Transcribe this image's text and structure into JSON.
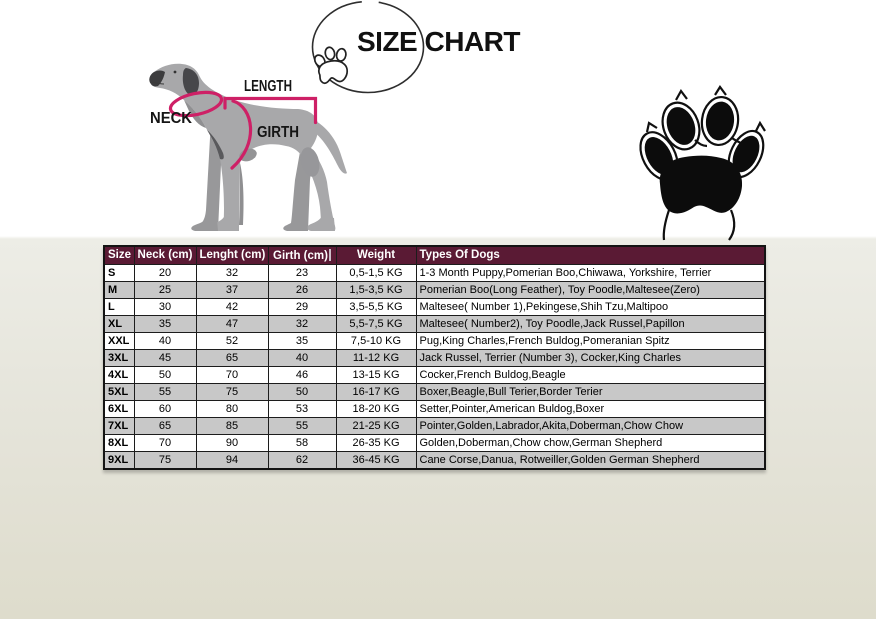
{
  "page": {
    "title": "SIZE CHART"
  },
  "icons": {
    "title_badge": "circle-outline-with-paw-icon",
    "corner_graphic": "dog-paw-print-icon"
  },
  "colors": {
    "accent_pink": "#CE2066",
    "table_header_bg": "#5A1A34",
    "table_alt_row": "#C8C8C8",
    "background_bottom": "#DEDCCC",
    "dog_gray": "#A8A8AA"
  },
  "diagram": {
    "neck_label": "NECK",
    "length_label": "LENGTH",
    "girth_label": "GIRTH"
  },
  "table": {
    "headers": [
      "Size",
      "Neck (cm)",
      "Lenght (cm)",
      "Girth (cm)",
      "Weight",
      "Types Of Dogs"
    ],
    "rows": [
      [
        "S",
        "20",
        "32",
        "23",
        "0,5-1,5 KG",
        "1-3 Month Puppy,Pomerian Boo,Chiwawa, Yorkshire, Terrier"
      ],
      [
        "M",
        "25",
        "37",
        "26",
        "1,5-3,5 KG",
        "Pomerian Boo(Long Feather), Toy Poodle,Maltesee(Zero)"
      ],
      [
        "L",
        "30",
        "42",
        "29",
        "3,5-5,5 KG",
        "Maltesee( Number 1),Pekingese,Shih Tzu,Maltipoo"
      ],
      [
        "XL",
        "35",
        "47",
        "32",
        "5,5-7,5 KG",
        "Maltesee( Number2), Toy Poodle,Jack Russel,Papillon"
      ],
      [
        "XXL",
        "40",
        "52",
        "35",
        "7,5-10 KG",
        "Pug,King Charles,French Buldog,Pomeranian Spitz"
      ],
      [
        "3XL",
        "45",
        "65",
        "40",
        "11-12 KG",
        "Jack Russel, Terrier (Number 3), Cocker,King Charles"
      ],
      [
        "4XL",
        "50",
        "70",
        "46",
        "13-15 KG",
        "Cocker,French Buldog,Beagle"
      ],
      [
        "5XL",
        "55",
        "75",
        "50",
        "16-17 KG",
        "Boxer,Beagle,Bull Terier,Border Terier"
      ],
      [
        "6XL",
        "60",
        "80",
        "53",
        "18-20 KG",
        "Setter,Pointer,American Buldog,Boxer"
      ],
      [
        "7XL",
        "65",
        "85",
        "55",
        "21-25 KG",
        "Pointer,Golden,Labrador,Akita,Doberman,Chow Chow"
      ],
      [
        "8XL",
        "70",
        "90",
        "58",
        "26-35 KG",
        "Golden,Doberman,Chow chow,German Shepherd"
      ],
      [
        "9XL",
        "75",
        "94",
        "62",
        "36-45 KG",
        "Cane Corse,Danua, Rotweiller,Golden German Shepherd"
      ]
    ]
  }
}
